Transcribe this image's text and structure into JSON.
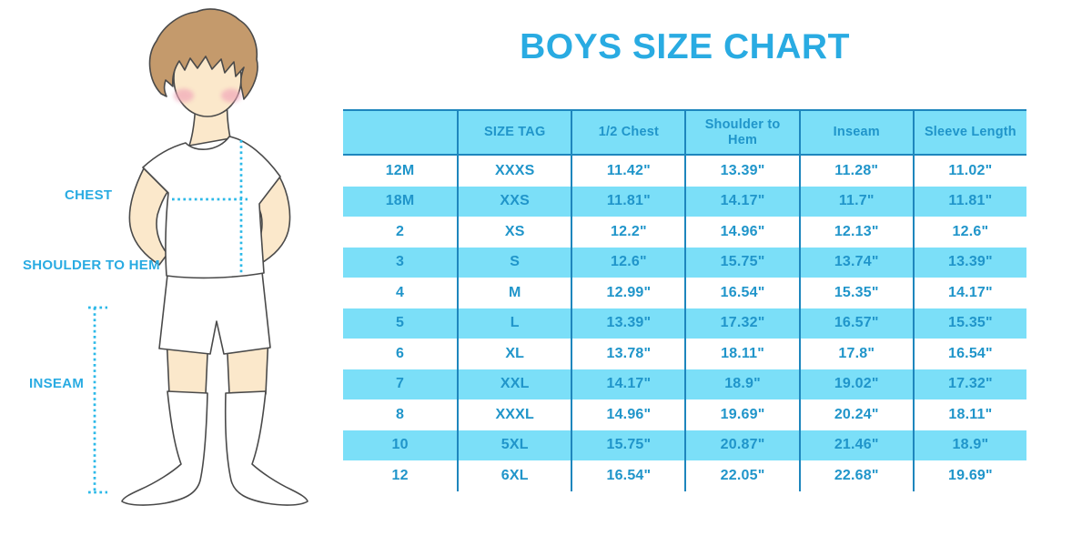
{
  "title": {
    "text": "BOYS SIZE CHART"
  },
  "figure": {
    "labels": {
      "chest": "CHEST",
      "shoulder_to_hem": "SHOULDER TO HEM",
      "inseam": "INSEAM"
    }
  },
  "table": {
    "columns": [
      "",
      "SIZE TAG",
      "1/2 Chest",
      "Shoulder to Hem",
      "Inseam",
      "Sleeve Length"
    ],
    "rows": [
      [
        "12M",
        "XXXS",
        "11.42\"",
        "13.39\"",
        "11.28\"",
        "11.02\""
      ],
      [
        "18M",
        "XXS",
        "11.81\"",
        "14.17\"",
        "11.7\"",
        "11.81\""
      ],
      [
        "2",
        "XS",
        "12.2\"",
        "14.96\"",
        "12.13\"",
        "12.6\""
      ],
      [
        "3",
        "S",
        "12.6\"",
        "15.75\"",
        "13.74\"",
        "13.39\""
      ],
      [
        "4",
        "M",
        "12.99\"",
        "16.54\"",
        "15.35\"",
        "14.17\""
      ],
      [
        "5",
        "L",
        "13.39\"",
        "17.32\"",
        "16.57\"",
        "15.35\""
      ],
      [
        "6",
        "XL",
        "13.78\"",
        "18.11\"",
        "17.8\"",
        "16.54\""
      ],
      [
        "7",
        "XXL",
        "14.17\"",
        "18.9\"",
        "19.02\"",
        "17.32\""
      ],
      [
        "8",
        "XXXL",
        "14.96\"",
        "19.69\"",
        "20.24\"",
        "18.11\""
      ],
      [
        "10",
        "5XL",
        "15.75\"",
        "20.87\"",
        "21.46\"",
        "18.9\""
      ],
      [
        "12",
        "6XL",
        "16.54\"",
        "22.05\"",
        "22.68\"",
        "19.69\""
      ]
    ]
  },
  "colors": {
    "accent_blue": "#29ABE2",
    "table_text": "#2095CA",
    "cell_cyan": "#7BDFF8",
    "border_blue": "#1E86BD",
    "dotted_cyan": "#2CB9E8",
    "skin": "#FBE8CB",
    "hair": "#C49A6C",
    "blush": "#F0A3B8",
    "garment_white": "#FFFFFF"
  }
}
